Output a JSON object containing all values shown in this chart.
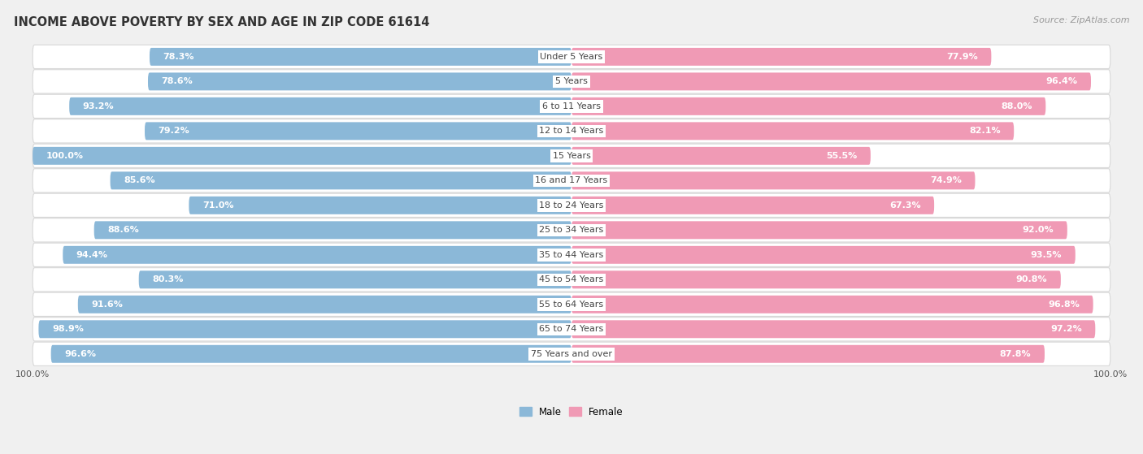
{
  "title": "INCOME ABOVE POVERTY BY SEX AND AGE IN ZIP CODE 61614",
  "source": "Source: ZipAtlas.com",
  "categories": [
    "Under 5 Years",
    "5 Years",
    "6 to 11 Years",
    "12 to 14 Years",
    "15 Years",
    "16 and 17 Years",
    "18 to 24 Years",
    "25 to 34 Years",
    "35 to 44 Years",
    "45 to 54 Years",
    "55 to 64 Years",
    "65 to 74 Years",
    "75 Years and over"
  ],
  "male_values": [
    78.3,
    78.6,
    93.2,
    79.2,
    100.0,
    85.6,
    71.0,
    88.6,
    94.4,
    80.3,
    91.6,
    98.9,
    96.6
  ],
  "female_values": [
    77.9,
    96.4,
    88.0,
    82.1,
    55.5,
    74.9,
    67.3,
    92.0,
    93.5,
    90.8,
    96.8,
    97.2,
    87.8
  ],
  "male_color": "#8bb8d8",
  "female_color": "#f09ab5",
  "male_label": "Male",
  "female_label": "Female",
  "bg_color": "#f0f0f0",
  "row_bg_color": "#ffffff",
  "row_border_color": "#d8d8d8",
  "max_value": 100.0,
  "label_fontsize": 8.0,
  "title_fontsize": 10.5,
  "source_fontsize": 8.0,
  "category_fontsize": 8.0,
  "legend_fontsize": 8.5,
  "axis_label_fontsize": 8.0
}
